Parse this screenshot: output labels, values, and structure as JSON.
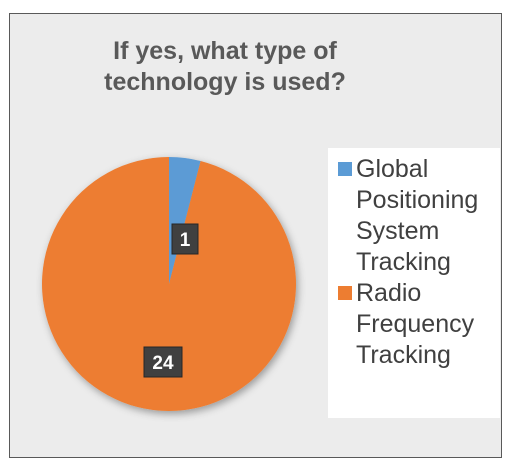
{
  "chart_data": {
    "type": "pie",
    "title": "If yes, what type of technology is used?",
    "title_lines": [
      "If yes, what type of",
      "technology is used?"
    ],
    "categories": [
      "Global Positioning System Tracking",
      "Radio Frequency Tracking"
    ],
    "values": [
      1,
      24
    ],
    "data_labels": [
      "1",
      "24"
    ],
    "colors": [
      "#5b9bd5",
      "#ed7d31"
    ],
    "legend_position": "right"
  },
  "legend": {
    "items": [
      {
        "lines": [
          "Global",
          "Positioning",
          "System",
          "Tracking"
        ],
        "color": "#5b9bd5"
      },
      {
        "lines": [
          "Radio",
          "Frequency",
          "Tracking"
        ],
        "color": "#ed7d31"
      }
    ]
  }
}
